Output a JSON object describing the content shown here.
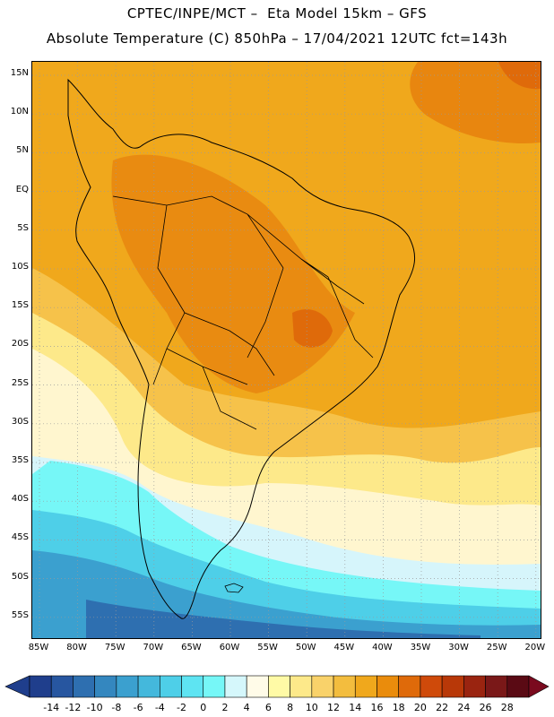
{
  "header": {
    "line1": "CPTEC/INPE/MCT –  Eta Model 15km – GFS",
    "line2": "Absolute Temperature (C) 850hPa – 17/04/2021 12UTC fct=143h"
  },
  "lat_labels": [
    "15N",
    "10N",
    "5N",
    "EQ",
    "5S",
    "10S",
    "15S",
    "20S",
    "25S",
    "30S",
    "35S",
    "40S",
    "45S",
    "50S",
    "55S"
  ],
  "lon_labels": [
    "85W",
    "80W",
    "75W",
    "70W",
    "65W",
    "60W",
    "55W",
    "50W",
    "45W",
    "40W",
    "35W",
    "30W",
    "25W",
    "20W"
  ],
  "colorbar": {
    "labels": [
      "-14",
      "-12",
      "-10",
      "-8",
      "-6",
      "-4",
      "-2",
      "0",
      "2",
      "4",
      "6",
      "8",
      "10",
      "12",
      "14",
      "16",
      "18",
      "20",
      "22",
      "24",
      "26",
      "28"
    ],
    "colors": [
      "#1f3e8c",
      "#2756a0",
      "#2e6fb0",
      "#3487bf",
      "#3ba0cf",
      "#44b8dc",
      "#4ecfe8",
      "#5ee4f2",
      "#76f7f7",
      "#d5f7fb",
      "#fffbe8",
      "#fffaa6",
      "#fde98a",
      "#f9d26a",
      "#f3bd3e",
      "#f0a81c",
      "#ea8c0c",
      "#df6a0a",
      "#cf4a0a",
      "#b83808",
      "#9a2410",
      "#7a1818",
      "#5a0a14"
    ],
    "low_arrow": "#1f3e8c",
    "high_arrow": "#7a0a1e"
  },
  "map": {
    "warm_base": "#f0a81c",
    "hot": "#e8860f",
    "hotter": "#df6a0a",
    "mild": "#f6c24a",
    "cool_yellow": "#fde98a",
    "pale": "#fff6cf",
    "ice": "#d6f5fb",
    "cyan": "#76f7f7",
    "sky": "#4ecfe8",
    "blue": "#3ba0cf",
    "deep": "#2e6fb0",
    "deeper": "#2756a0",
    "land_line": "#000000",
    "grid": "#9a9a9a"
  }
}
